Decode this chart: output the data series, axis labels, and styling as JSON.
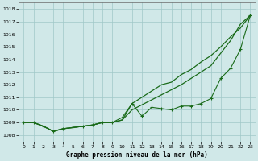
{
  "x": [
    0,
    1,
    2,
    3,
    4,
    5,
    6,
    7,
    8,
    9,
    10,
    11,
    12,
    13,
    14,
    15,
    16,
    17,
    18,
    19,
    20,
    21,
    22,
    23
  ],
  "line_markers": [
    1009.0,
    1009.0,
    1008.7,
    1008.3,
    1008.5,
    1008.6,
    1008.7,
    1008.8,
    1009.0,
    1009.0,
    1009.4,
    1010.5,
    1009.5,
    1010.2,
    1010.1,
    1010.0,
    1010.3,
    1010.3,
    1010.5,
    1010.9,
    1012.5,
    1013.3,
    1014.8,
    1017.5
  ],
  "line_smooth1": [
    1009.0,
    1009.0,
    1008.7,
    1008.3,
    1008.5,
    1008.6,
    1008.7,
    1008.8,
    1009.0,
    1009.0,
    1009.2,
    1010.0,
    1010.4,
    1010.8,
    1011.2,
    1011.6,
    1012.0,
    1012.5,
    1013.0,
    1013.5,
    1014.5,
    1015.5,
    1016.8,
    1017.5
  ],
  "line_smooth2": [
    1009.0,
    1009.0,
    1008.7,
    1008.3,
    1008.5,
    1008.6,
    1008.7,
    1008.8,
    1009.0,
    1009.0,
    1009.2,
    1010.5,
    1011.0,
    1011.5,
    1012.0,
    1012.2,
    1012.8,
    1013.2,
    1013.8,
    1014.3,
    1015.0,
    1015.8,
    1016.5,
    1017.5
  ],
  "bg_color": "#d0e8e8",
  "grid_color": "#a0c8c8",
  "line_color": "#1a6b1a",
  "xlabel": "Graphe pression niveau de la mer (hPa)",
  "ylim": [
    1007.5,
    1018.5
  ],
  "yticks": [
    1008,
    1009,
    1010,
    1011,
    1012,
    1013,
    1014,
    1015,
    1016,
    1017,
    1018
  ],
  "xticks": [
    0,
    1,
    2,
    3,
    4,
    5,
    6,
    7,
    8,
    9,
    10,
    11,
    12,
    13,
    14,
    15,
    16,
    17,
    18,
    19,
    20,
    21,
    22,
    23
  ]
}
